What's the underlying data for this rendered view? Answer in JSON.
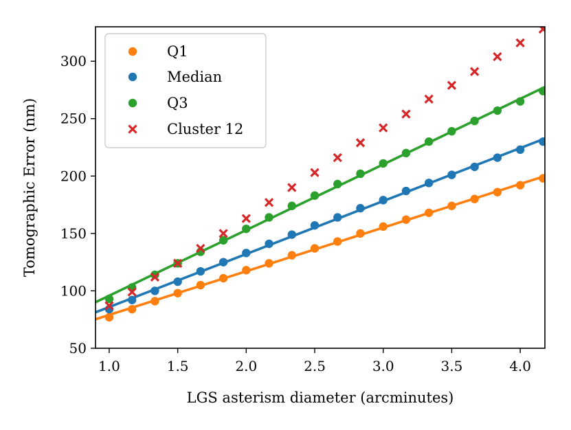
{
  "chart_data": {
    "type": "scatter",
    "title": "",
    "xlabel": "LGS asterism diameter (arcminutes)",
    "ylabel": "Tomographic Error (nm)",
    "xlim": [
      0.9,
      4.18
    ],
    "ylim": [
      50,
      330
    ],
    "xticks": [
      1.0,
      1.5,
      2.0,
      2.5,
      3.0,
      3.5,
      4.0
    ],
    "xtick_labels": [
      "1.0",
      "1.5",
      "2.0",
      "2.5",
      "3.0",
      "3.5",
      "4.0"
    ],
    "yticks": [
      50,
      100,
      150,
      200,
      250,
      300
    ],
    "ytick_labels": [
      "50",
      "100",
      "150",
      "200",
      "250",
      "300"
    ],
    "grid": false,
    "legend_position": "top-left",
    "x": [
      1.0,
      1.1667,
      1.3333,
      1.5,
      1.6667,
      1.8333,
      2.0,
      2.1667,
      2.3333,
      2.5,
      2.6667,
      2.8333,
      3.0,
      3.1667,
      3.3333,
      3.5,
      3.6667,
      3.8333,
      4.0,
      4.1667
    ],
    "series": [
      {
        "name": "Q1",
        "color": "#ff7f0e",
        "marker": "circle",
        "fit_line": true,
        "fit_line_range": [
          0.9,
          4.18
        ],
        "values": [
          77,
          84,
          91,
          98,
          105,
          111,
          118,
          124,
          131,
          137,
          143,
          150,
          156,
          162,
          168,
          174,
          180,
          186,
          192,
          198
        ]
      },
      {
        "name": "Median",
        "color": "#1f77b4",
        "marker": "circle",
        "fit_line": true,
        "fit_line_range": [
          0.9,
          4.18
        ],
        "values": [
          84,
          92,
          100,
          108,
          117,
          125,
          133,
          141,
          149,
          157,
          164,
          172,
          179,
          187,
          194,
          201,
          208,
          216,
          223,
          230
        ]
      },
      {
        "name": "Q3",
        "color": "#2ca02c",
        "marker": "circle",
        "fit_line": true,
        "fit_line_range": [
          0.9,
          4.18
        ],
        "values": [
          93,
          103,
          114,
          124,
          134,
          144,
          154,
          164,
          174,
          183,
          193,
          202,
          211,
          220,
          230,
          239,
          248,
          257,
          265,
          274
        ]
      },
      {
        "name": "Cluster 12",
        "color": "#d62728",
        "marker": "x",
        "fit_line": false,
        "values": [
          87,
          99,
          112,
          124,
          137,
          150,
          163,
          177,
          190,
          203,
          216,
          229,
          242,
          254,
          267,
          279,
          291,
          304,
          316,
          328
        ]
      }
    ]
  }
}
